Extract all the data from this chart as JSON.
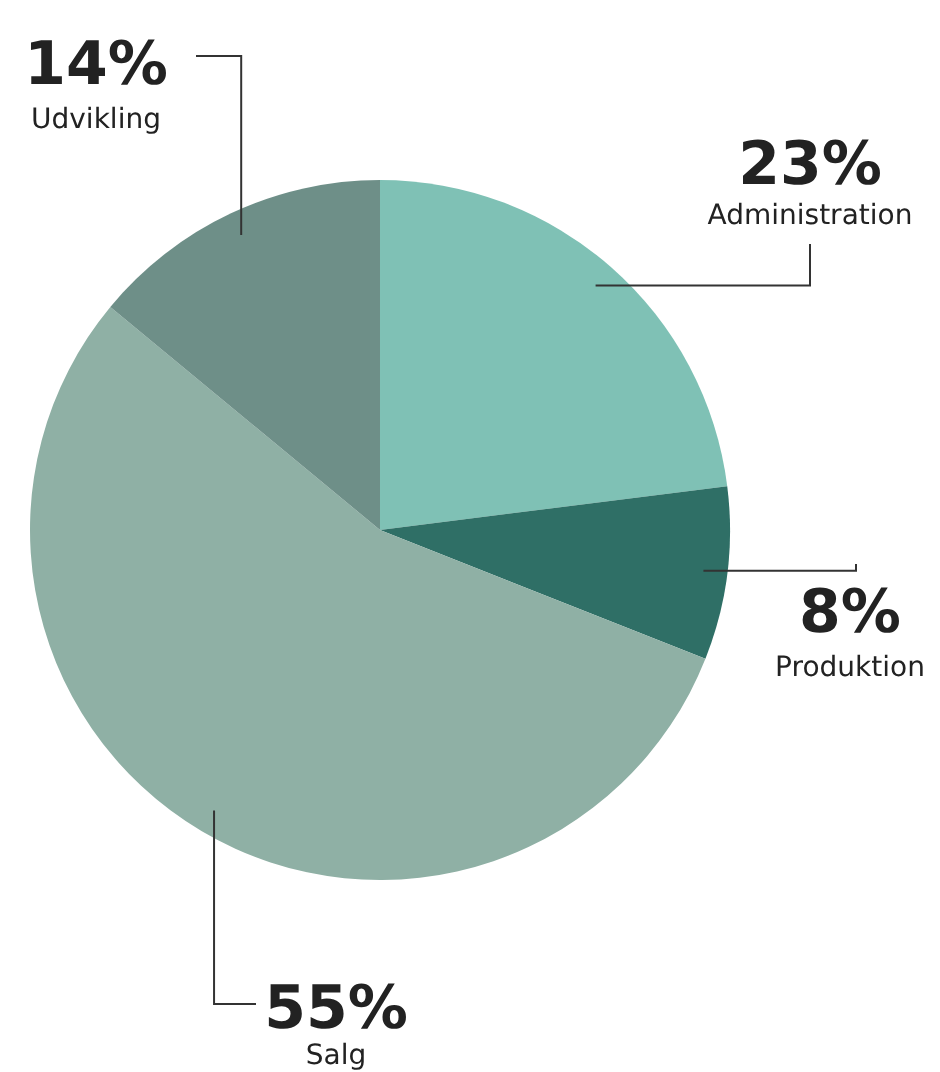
{
  "chart_data": {
    "type": "pie",
    "categories": [
      "Administration",
      "Produktion",
      "Salg",
      "Udvikling"
    ],
    "values": [
      23,
      8,
      55,
      14
    ],
    "value_labels": [
      "23%",
      "8%",
      "55%",
      "14%"
    ],
    "colors": [
      "#7fc1b5",
      "#2f6f66",
      "#8fb0a5",
      "#6e8f88"
    ]
  }
}
